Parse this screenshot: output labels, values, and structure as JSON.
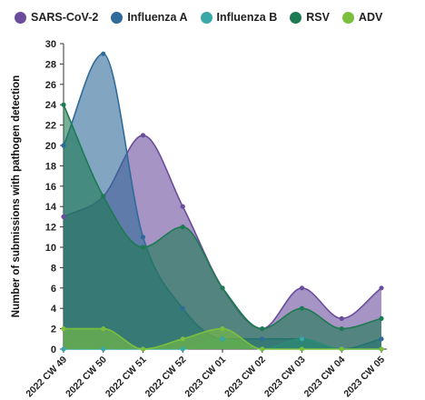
{
  "chart_data": {
    "type": "area",
    "title": "",
    "xlabel": "",
    "ylabel": "Number of submissions with pathogen detection",
    "ylim": [
      0,
      30
    ],
    "yticks": [
      0,
      2,
      4,
      6,
      8,
      10,
      12,
      14,
      16,
      18,
      20,
      22,
      24,
      26,
      28,
      30
    ],
    "categories": [
      "2022 CW 49",
      "2022 CW 50",
      "2022 CW 51",
      "2022 CW 52",
      "2023 CW 01",
      "2023 CW 02",
      "2023 CW 03",
      "2023 CW 04",
      "2023 CW 05"
    ],
    "legend_position": "top",
    "grid": false,
    "series": [
      {
        "name": "SARS-CoV-2",
        "color": "#6a4c9c",
        "values": [
          13,
          15,
          21,
          14,
          6,
          2,
          6,
          3,
          6
        ]
      },
      {
        "name": "Influenza A",
        "color": "#2f6b9a",
        "values": [
          20,
          29,
          11,
          4,
          1,
          1,
          1,
          0,
          1
        ]
      },
      {
        "name": "Influenza B",
        "color": "#3aa8a8",
        "values": [
          0,
          0,
          0,
          0,
          1,
          0,
          1,
          0,
          0
        ]
      },
      {
        "name": "RSV",
        "color": "#1e7a52",
        "values": [
          24,
          15,
          10,
          12,
          6,
          2,
          4,
          2,
          3
        ]
      },
      {
        "name": "ADV",
        "color": "#7bbf3f",
        "values": [
          2,
          2,
          0,
          1,
          2,
          0,
          0,
          0,
          0
        ]
      }
    ]
  }
}
